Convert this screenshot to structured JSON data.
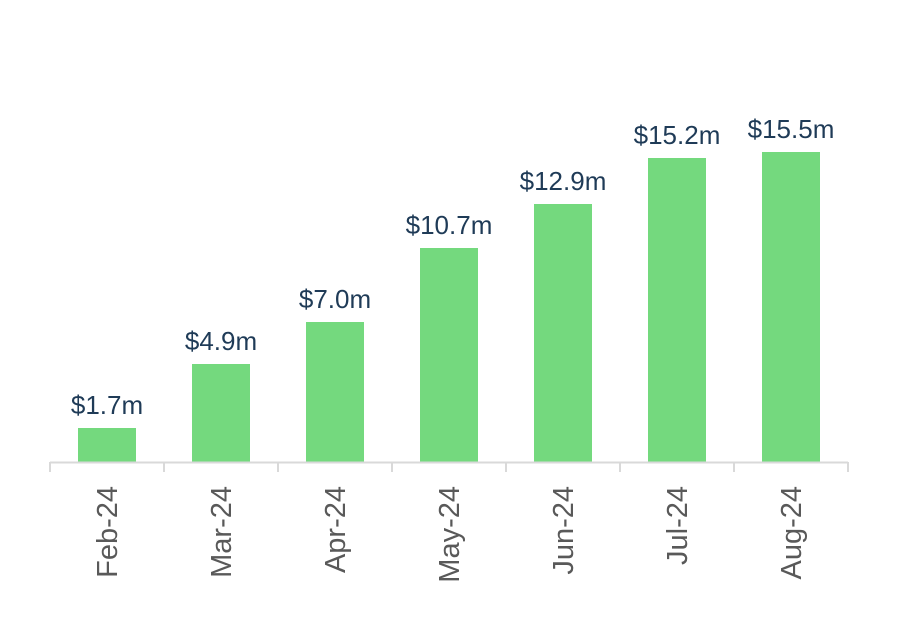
{
  "chart_data": {
    "type": "bar",
    "title": "",
    "xlabel": "",
    "ylabel": "",
    "categories": [
      "Feb-24",
      "Mar-24",
      "Apr-24",
      "May-24",
      "Jun-24",
      "Jul-24",
      "Aug-24"
    ],
    "values": [
      1.7,
      4.9,
      7.0,
      10.7,
      12.9,
      15.2,
      15.5
    ],
    "data_labels": [
      "$1.7m",
      "$4.9m",
      "$7.0m",
      "$10.7m",
      "$12.9m",
      "$15.2m",
      "$15.5m"
    ],
    "ylim": [
      0,
      15.5
    ],
    "unit": "$m",
    "grid": false,
    "legend": "none",
    "colors": {
      "bar": "#74d97e",
      "axis": "#d9d9d9",
      "data_label": "#1f3b57",
      "tick_label": "#595959"
    }
  }
}
